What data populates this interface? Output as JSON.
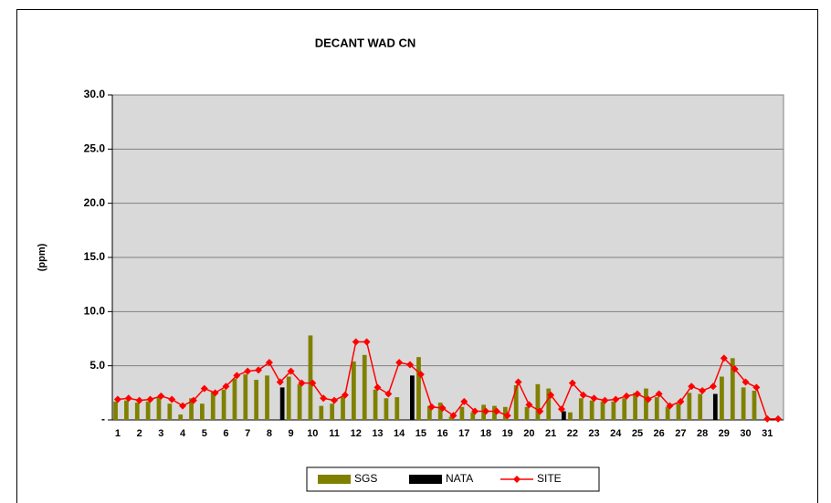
{
  "chart_data": {
    "type": "bar-line",
    "title": "DECANT WAD CN",
    "y_label": "(ppm)",
    "categories": [
      "1",
      null,
      "2",
      null,
      "3",
      null,
      "4",
      null,
      "5",
      null,
      "6",
      null,
      "7",
      null,
      "8",
      null,
      "9",
      null,
      "10",
      null,
      "11",
      null,
      "12",
      null,
      "13",
      null,
      "14",
      null,
      "15",
      null,
      "16",
      null,
      "17",
      null,
      "18",
      null,
      "19",
      null,
      "20",
      null,
      "21",
      null,
      "22",
      null,
      "23",
      null,
      "24",
      null,
      "25",
      null,
      "26",
      null,
      "27",
      null,
      "28",
      null,
      "29",
      null,
      "30",
      null,
      "31",
      null
    ],
    "series": [
      {
        "name": "SGS",
        "type": "bar",
        "color": "#808000",
        "values": [
          1.7,
          1.8,
          1.6,
          1.7,
          2.1,
          1.5,
          0.5,
          2.0,
          1.5,
          2.6,
          2.8,
          3.8,
          4.2,
          3.7,
          4.1,
          null,
          4.0,
          3.3,
          7.8,
          1.3,
          1.5,
          2.1,
          5.4,
          6.0,
          2.8,
          2.0,
          2.1,
          null,
          5.8,
          1.3,
          1.6,
          0.3,
          1.2,
          0.7,
          1.4,
          1.3,
          1.2,
          3.2,
          1.2,
          3.3,
          2.9,
          null,
          0.7,
          2.0,
          1.8,
          1.7,
          1.7,
          2.0,
          2.5,
          2.9,
          2.1,
          1.2,
          1.5,
          2.5,
          2.4,
          null,
          4.0,
          5.7,
          3.0,
          2.7,
          0,
          0
        ]
      },
      {
        "name": "NATA",
        "type": "bar",
        "color": "#000000",
        "values": [
          null,
          null,
          null,
          null,
          null,
          null,
          null,
          null,
          null,
          null,
          null,
          null,
          null,
          null,
          null,
          3.0,
          null,
          null,
          null,
          null,
          null,
          null,
          null,
          null,
          null,
          null,
          null,
          4.1,
          null,
          null,
          null,
          null,
          null,
          null,
          null,
          null,
          null,
          null,
          null,
          null,
          null,
          0.8,
          null,
          null,
          null,
          null,
          null,
          null,
          null,
          null,
          null,
          null,
          null,
          null,
          null,
          2.4,
          null,
          null,
          null,
          null,
          null,
          null
        ]
      },
      {
        "name": "SITE",
        "type": "line",
        "color": "#ff0000",
        "values": [
          1.9,
          2.0,
          1.8,
          1.9,
          2.2,
          1.9,
          1.3,
          1.8,
          2.9,
          2.5,
          3.1,
          4.1,
          4.5,
          4.6,
          5.3,
          3.5,
          4.5,
          3.4,
          3.4,
          2.0,
          1.8,
          2.3,
          7.2,
          7.2,
          3.0,
          2.4,
          5.3,
          5.1,
          4.2,
          1.2,
          1.1,
          0.4,
          1.7,
          0.8,
          0.8,
          0.8,
          0.4,
          3.5,
          1.4,
          0.8,
          2.3,
          1.0,
          3.4,
          2.3,
          2.0,
          1.8,
          1.9,
          2.2,
          2.4,
          1.9,
          2.4,
          1.3,
          1.7,
          3.1,
          2.7,
          3.1,
          5.7,
          4.7,
          3.5,
          3.0,
          0.1,
          0.1
        ]
      }
    ],
    "ylim": [
      0,
      30
    ],
    "yticks": [
      {
        "value": 0,
        "label": "-"
      },
      {
        "value": 5,
        "label": "5.0"
      },
      {
        "value": 10,
        "label": "10.0"
      },
      {
        "value": 15,
        "label": "15.0"
      },
      {
        "value": 20,
        "label": "20.0"
      },
      {
        "value": 25,
        "label": "25.0"
      },
      {
        "value": 30,
        "label": "30.0"
      }
    ],
    "grid": true,
    "legend": "bottom"
  }
}
